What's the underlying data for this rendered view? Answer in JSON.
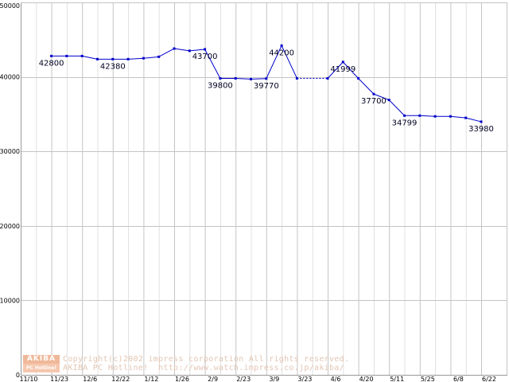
{
  "chart_data": {
    "type": "line",
    "title": "",
    "xlabel": "",
    "ylabel": "",
    "ylim": [
      0,
      50000
    ],
    "grid": true,
    "y_ticks": [
      0,
      10000,
      20000,
      30000,
      40000,
      50000
    ],
    "x_tick_labels": [
      "11/10",
      "11/23",
      "12/6",
      "12/22",
      "1/12",
      "1/26",
      "2/9",
      "2/23",
      "3/9",
      "3/23",
      "4/6",
      "4/20",
      "5/11",
      "5/25",
      "6/8",
      "6/22"
    ],
    "series": [
      {
        "color": "#0000cc",
        "points": [
          {
            "x": 2,
            "y": 42800
          },
          {
            "x": 3,
            "y": 42800
          },
          {
            "x": 4,
            "y": 42800
          },
          {
            "x": 5,
            "y": 42380
          },
          {
            "x": 6,
            "y": 42380
          },
          {
            "x": 7,
            "y": 42380
          },
          {
            "x": 8,
            "y": 42500
          },
          {
            "x": 9,
            "y": 42700
          },
          {
            "x": 10,
            "y": 43800
          },
          {
            "x": 11,
            "y": 43500
          },
          {
            "x": 12,
            "y": 43700
          },
          {
            "x": 13,
            "y": 39800
          },
          {
            "x": 14,
            "y": 39800
          },
          {
            "x": 15,
            "y": 39700
          },
          {
            "x": 16,
            "y": 39770
          },
          {
            "x": 17,
            "y": 44200
          },
          {
            "x": 18,
            "y": 39800
          },
          {
            "x": 20,
            "y": 39800
          },
          {
            "x": 21,
            "y": 41999
          },
          {
            "x": 22,
            "y": 39800
          },
          {
            "x": 23,
            "y": 37700
          },
          {
            "x": 24,
            "y": 36900
          },
          {
            "x": 25,
            "y": 34799
          },
          {
            "x": 26,
            "y": 34799
          },
          {
            "x": 27,
            "y": 34700
          },
          {
            "x": 28,
            "y": 34700
          },
          {
            "x": 29,
            "y": 34500
          },
          {
            "x": 30,
            "y": 33980
          }
        ],
        "dashed_segments": [
          [
            18,
            20
          ]
        ]
      }
    ],
    "annotations": [
      {
        "x": 2,
        "text": "42800",
        "pos": "below"
      },
      {
        "x": 6,
        "text": "42380",
        "pos": "below"
      },
      {
        "x": 12,
        "text": "43700",
        "pos": "below"
      },
      {
        "x": 13,
        "text": "39800",
        "pos": "below"
      },
      {
        "x": 16,
        "text": "39770",
        "pos": "below"
      },
      {
        "x": 17,
        "text": "44200",
        "pos": "below"
      },
      {
        "x": 21,
        "text": "41999",
        "pos": "below"
      },
      {
        "x": 23,
        "text": "37700",
        "pos": "below"
      },
      {
        "x": 25,
        "text": "34799",
        "pos": "below"
      },
      {
        "x": 30,
        "text": "33980",
        "pos": "below"
      }
    ]
  },
  "footer": {
    "logo_top": "AKIBA",
    "logo_bottom": "PC Hotline!",
    "copyright_line": "Copyright(c)2002 impress corporation All rights reserved.",
    "url_line": "AKIBA PC Hotline!  http://www.watch.impress.co.jp/akiba/"
  }
}
